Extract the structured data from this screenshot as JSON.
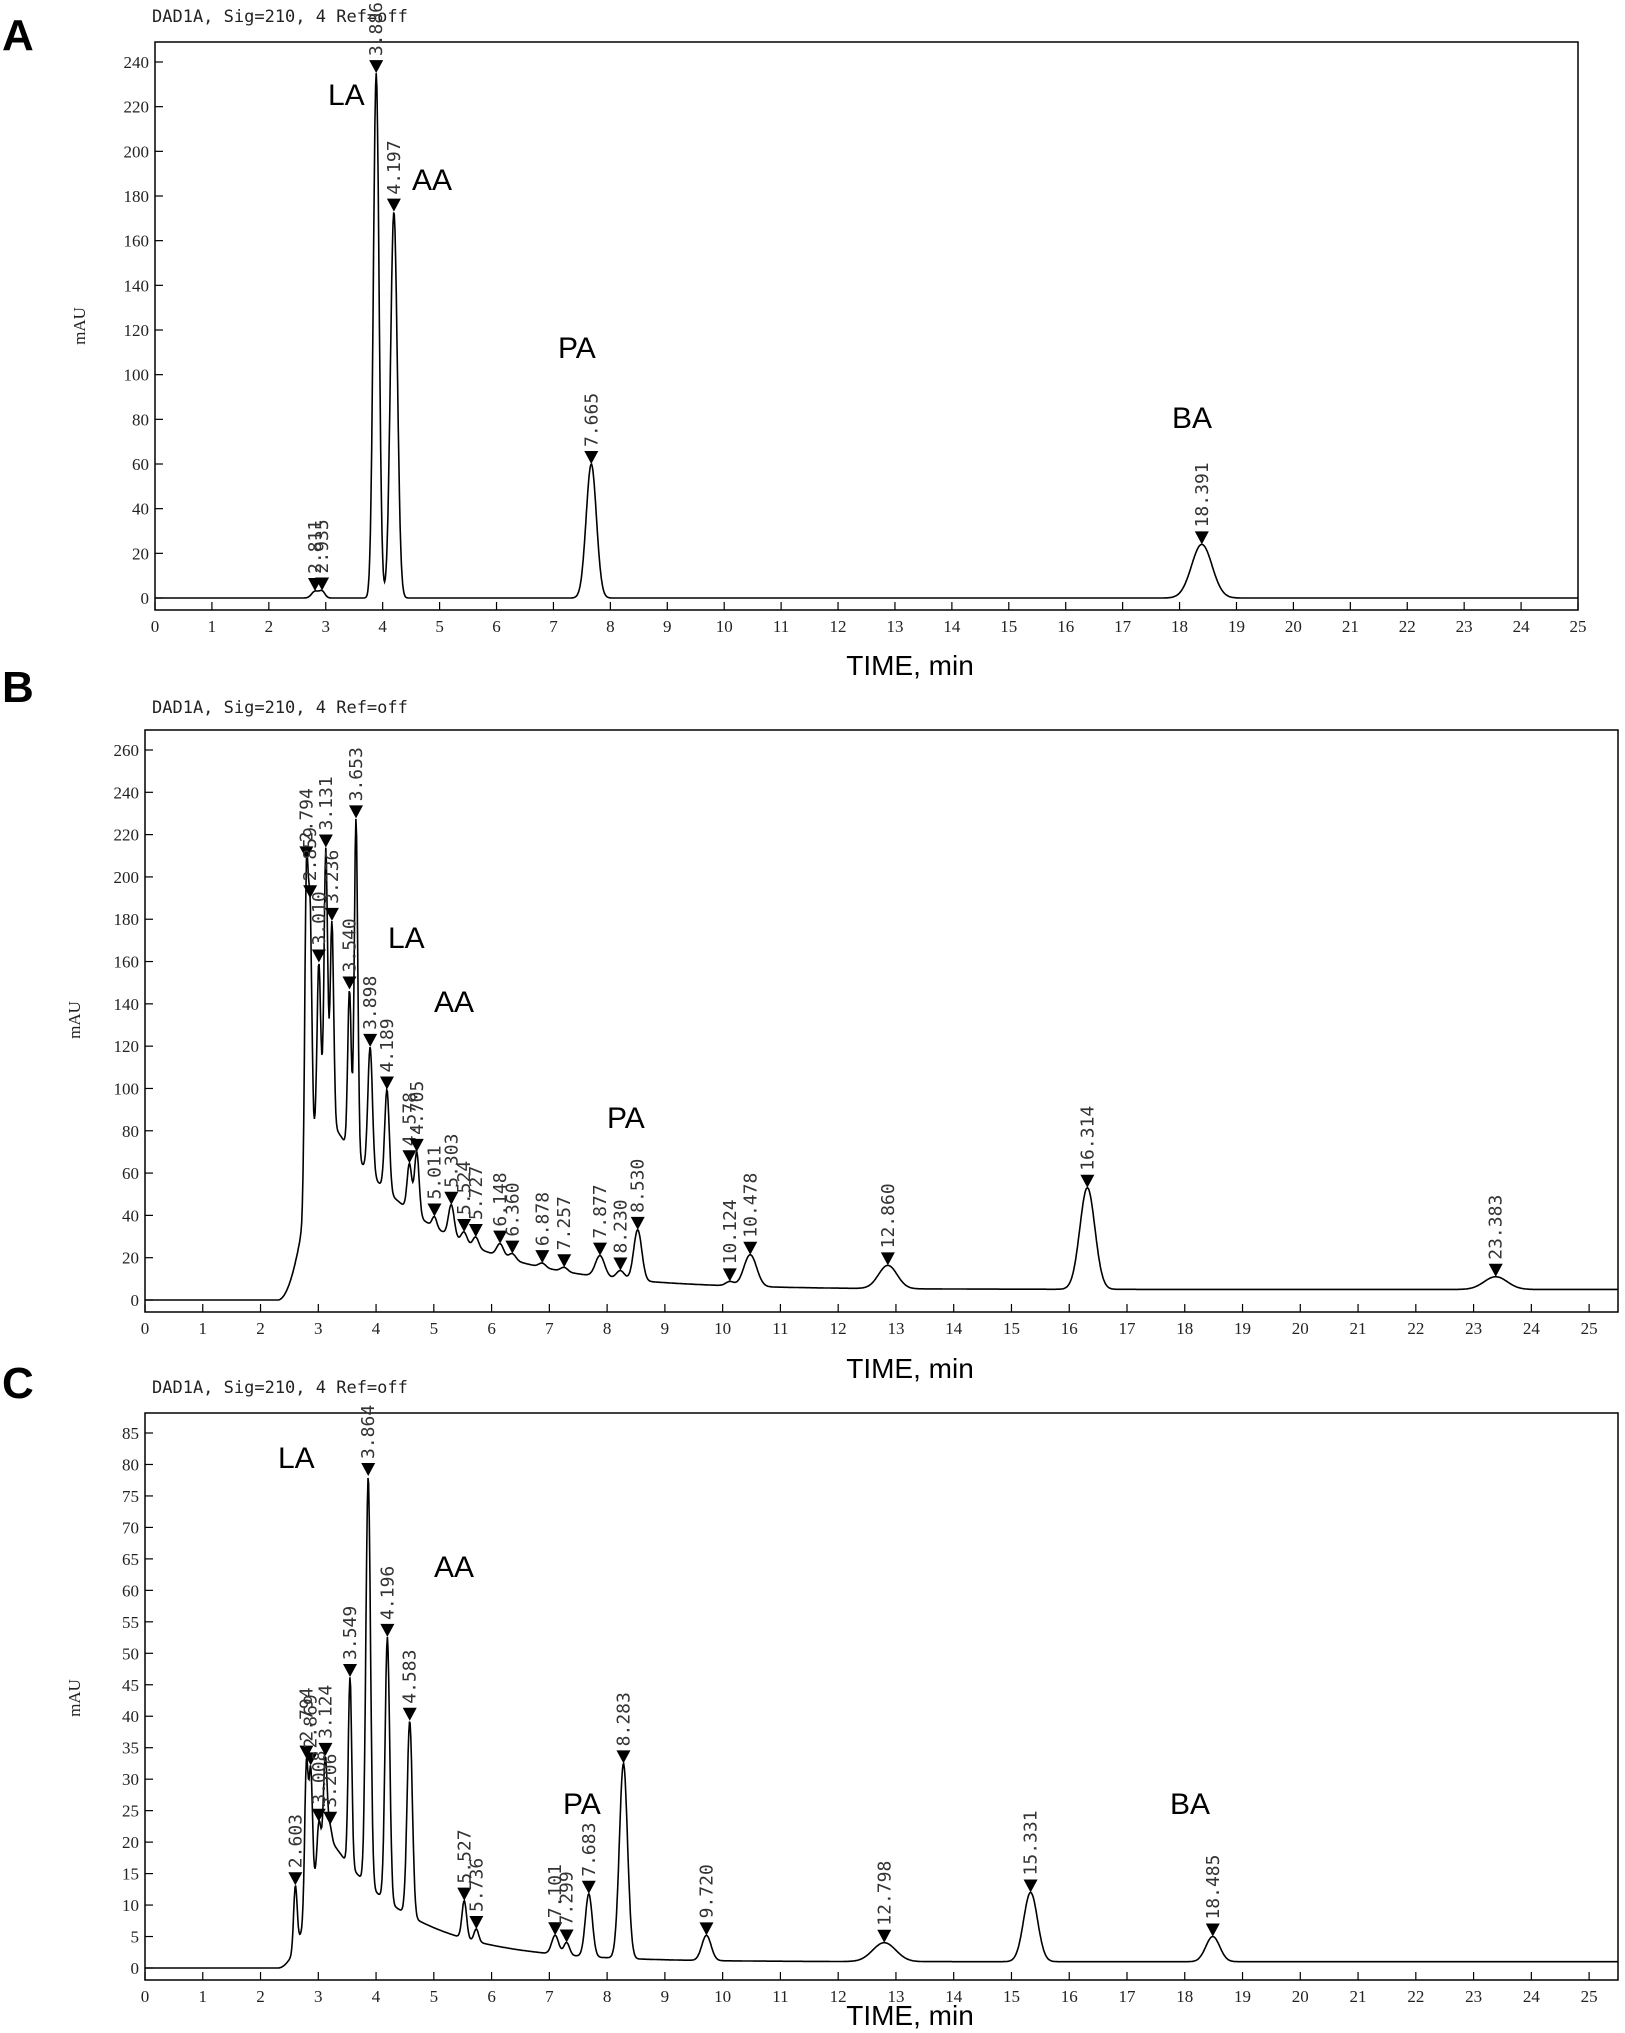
{
  "chart_data": [
    {
      "type": "line",
      "panel_label": "A",
      "header": "DAD1A, Sig=210, 4  Ref=off",
      "xlabel": "TIME, min",
      "ylabel": "mAU",
      "xlim": [
        0,
        25
      ],
      "ylim": [
        0,
        240
      ],
      "x_ticks": [
        0,
        1,
        2,
        3,
        4,
        5,
        6,
        7,
        8,
        9,
        10,
        11,
        12,
        13,
        14,
        15,
        16,
        17,
        18,
        19,
        20,
        21,
        22,
        23,
        24,
        25
      ],
      "y_ticks": [
        0,
        20,
        40,
        60,
        80,
        100,
        120,
        140,
        160,
        180,
        200,
        220,
        240
      ],
      "baseline": 0,
      "baseline_hump": null,
      "peaks": [
        {
          "rt": 2.811,
          "label": "2.811",
          "height": 3,
          "sigma": 0.06
        },
        {
          "rt": 2.935,
          "label": "2.935",
          "height": 3,
          "sigma": 0.05
        },
        {
          "rt": 3.886,
          "label": "3.886",
          "height": 235,
          "sigma": 0.05
        },
        {
          "rt": 4.197,
          "label": "4.197",
          "height": 173,
          "sigma": 0.06
        },
        {
          "rt": 7.665,
          "label": "7.665",
          "height": 60,
          "sigma": 0.09
        },
        {
          "rt": 18.391,
          "label": "18.391",
          "height": 24,
          "sigma": 0.18
        }
      ],
      "compound_labels": [
        {
          "text": "LA",
          "rt": 3.886
        },
        {
          "text": "AA",
          "rt": 4.197
        },
        {
          "text": "PA",
          "rt": 7.665
        },
        {
          "text": "BA",
          "rt": 18.391
        }
      ]
    },
    {
      "type": "line",
      "panel_label": "B",
      "header": "DAD1A, Sig=210, 4  Ref=off",
      "xlabel": "TIME, min",
      "ylabel": "mAU",
      "xlim": [
        0,
        25.5
      ],
      "ylim": [
        0,
        260
      ],
      "x_ticks": [
        0,
        1,
        2,
        3,
        4,
        5,
        6,
        7,
        8,
        9,
        10,
        11,
        12,
        13,
        14,
        15,
        16,
        17,
        18,
        19,
        20,
        21,
        22,
        23,
        24,
        25
      ],
      "y_ticks": [
        0,
        20,
        40,
        60,
        80,
        100,
        120,
        140,
        160,
        180,
        200,
        220,
        240,
        260
      ],
      "baseline": 0,
      "baseline_hump": {
        "start": 2.3,
        "peak_time": 3.0,
        "peak_value": 95,
        "decay": 1.8,
        "floor": 5
      },
      "peaks": [
        {
          "rt": 2.794,
          "label": "2.794",
          "height": 150,
          "sigma": 0.03
        },
        {
          "rt": 2.859,
          "label": "2.859",
          "height": 115,
          "sigma": 0.03
        },
        {
          "rt": 3.01,
          "label": "3.010",
          "height": 65,
          "sigma": 0.03
        },
        {
          "rt": 3.131,
          "label": "3.131",
          "height": 125,
          "sigma": 0.03
        },
        {
          "rt": 3.236,
          "label": "3.236",
          "height": 95,
          "sigma": 0.03
        },
        {
          "rt": 3.54,
          "label": "3.540",
          "height": 75,
          "sigma": 0.03
        },
        {
          "rt": 3.653,
          "label": "3.653",
          "height": 160,
          "sigma": 0.03
        },
        {
          "rt": 3.898,
          "label": "3.898",
          "height": 60,
          "sigma": 0.04
        },
        {
          "rt": 4.189,
          "label": "4.189",
          "height": 48,
          "sigma": 0.04
        },
        {
          "rt": 4.578,
          "label": "4.578",
          "height": 22,
          "sigma": 0.04
        },
        {
          "rt": 4.705,
          "label": "4.705",
          "height": 30,
          "sigma": 0.04
        },
        {
          "rt": 5.011,
          "label": "5.011",
          "height": 5,
          "sigma": 0.04
        },
        {
          "rt": 5.303,
          "label": "5.303",
          "height": 15,
          "sigma": 0.05
        },
        {
          "rt": 5.524,
          "label": "5.524",
          "height": 5,
          "sigma": 0.05
        },
        {
          "rt": 5.727,
          "label": "5.727",
          "height": 5,
          "sigma": 0.05
        },
        {
          "rt": 6.148,
          "label": "6.148",
          "height": 6,
          "sigma": 0.06
        },
        {
          "rt": 6.36,
          "label": "6.360",
          "height": 3,
          "sigma": 0.06
        },
        {
          "rt": 6.878,
          "label": "6.878",
          "height": 2,
          "sigma": 0.06
        },
        {
          "rt": 7.257,
          "label": "7.257",
          "height": 2,
          "sigma": 0.06
        },
        {
          "rt": 7.877,
          "label": "7.877",
          "height": 10,
          "sigma": 0.08
        },
        {
          "rt": 8.23,
          "label": "8.230",
          "height": 4,
          "sigma": 0.07
        },
        {
          "rt": 8.53,
          "label": "8.530",
          "height": 24,
          "sigma": 0.07
        },
        {
          "rt": 10.124,
          "label": "10.124",
          "height": 2,
          "sigma": 0.07
        },
        {
          "rt": 10.478,
          "label": "10.478",
          "height": 15,
          "sigma": 0.11
        },
        {
          "rt": 12.86,
          "label": "12.860",
          "height": 11,
          "sigma": 0.16
        },
        {
          "rt": 16.314,
          "label": "16.314",
          "height": 48,
          "sigma": 0.13
        },
        {
          "rt": 23.383,
          "label": "23.383",
          "height": 6,
          "sigma": 0.2
        }
      ],
      "compound_labels": [
        {
          "text": "LA",
          "rt": 3.898
        },
        {
          "text": "AA",
          "rt": 4.189
        },
        {
          "text": "PA",
          "rt": 7.877
        }
      ]
    },
    {
      "type": "line",
      "panel_label": "C",
      "header": "DAD1A, Sig=210, 4  Ref=off",
      "xlabel": "TIME, min",
      "ylabel": "mAU",
      "xlim": [
        0,
        25.5
      ],
      "ylim": [
        0,
        85
      ],
      "x_ticks": [
        0,
        1,
        2,
        3,
        4,
        5,
        6,
        7,
        8,
        9,
        10,
        11,
        12,
        13,
        14,
        15,
        16,
        17,
        18,
        19,
        20,
        21,
        22,
        23,
        24,
        25
      ],
      "y_ticks": [
        0,
        5,
        10,
        15,
        20,
        25,
        30,
        35,
        40,
        45,
        50,
        55,
        60,
        65,
        70,
        75,
        80,
        85
      ],
      "baseline": 0,
      "baseline_hump": {
        "start": 2.3,
        "peak_time": 3.1,
        "peak_value": 22,
        "decay": 1.4,
        "floor": 1
      },
      "peaks": [
        {
          "rt": 2.603,
          "label": "2.603",
          "height": 10,
          "sigma": 0.03
        },
        {
          "rt": 2.794,
          "label": "2.794",
          "height": 24,
          "sigma": 0.03
        },
        {
          "rt": 2.869,
          "label": "2.869",
          "height": 20,
          "sigma": 0.03
        },
        {
          "rt": 3.008,
          "label": "3.008",
          "height": 6,
          "sigma": 0.03
        },
        {
          "rt": 3.124,
          "label": "3.124",
          "height": 12,
          "sigma": 0.03
        },
        {
          "rt": 3.206,
          "label": "3.206",
          "height": 2,
          "sigma": 0.03
        },
        {
          "rt": 3.549,
          "label": "3.549",
          "height": 30,
          "sigma": 0.03
        },
        {
          "rt": 3.864,
          "label": "3.864",
          "height": 65,
          "sigma": 0.04
        },
        {
          "rt": 4.196,
          "label": "4.196",
          "height": 42,
          "sigma": 0.04
        },
        {
          "rt": 4.583,
          "label": "4.583",
          "height": 31,
          "sigma": 0.045
        },
        {
          "rt": 5.527,
          "label": "5.527",
          "height": 6,
          "sigma": 0.04
        },
        {
          "rt": 5.736,
          "label": "5.736",
          "height": 2,
          "sigma": 0.04
        },
        {
          "rt": 7.101,
          "label": "7.101",
          "height": 3,
          "sigma": 0.06
        },
        {
          "rt": 7.299,
          "label": "7.299",
          "height": 2,
          "sigma": 0.05
        },
        {
          "rt": 7.683,
          "label": "7.683",
          "height": 10,
          "sigma": 0.06
        },
        {
          "rt": 8.283,
          "label": "8.283",
          "height": 31,
          "sigma": 0.07
        },
        {
          "rt": 9.72,
          "label": "9.720",
          "height": 4,
          "sigma": 0.08
        },
        {
          "rt": 12.798,
          "label": "12.798",
          "height": 3,
          "sigma": 0.2
        },
        {
          "rt": 15.331,
          "label": "15.331",
          "height": 11,
          "sigma": 0.12
        },
        {
          "rt": 18.485,
          "label": "18.485",
          "height": 4,
          "sigma": 0.12
        }
      ],
      "compound_labels": [
        {
          "text": "LA",
          "rt": 3.549
        },
        {
          "text": "AA",
          "rt": 4.196
        },
        {
          "text": "PA",
          "rt": 7.683
        },
        {
          "text": "BA",
          "rt": 18.485
        }
      ]
    }
  ]
}
